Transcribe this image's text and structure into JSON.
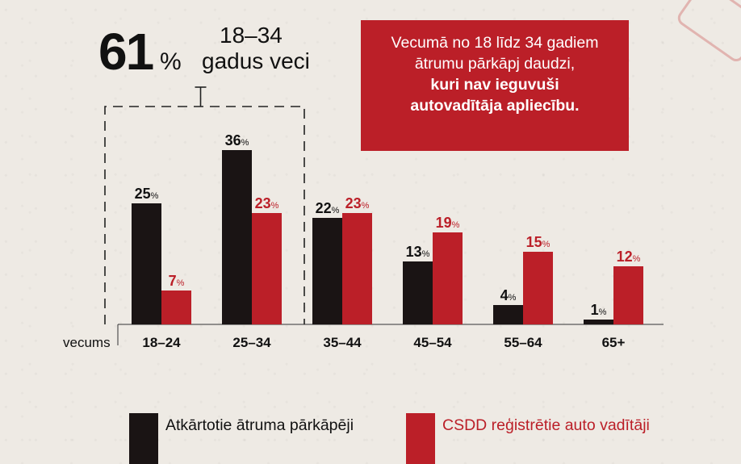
{
  "headline": {
    "percent_value": "61",
    "percent_sign": "%",
    "age_range": "18–34",
    "age_label": "gadus veci"
  },
  "callout": {
    "line1": "Vecumā no 18 līdz 34 gadiem",
    "line2": "ātrumu pārkāpj daudzi,",
    "line3_bold": "kuri nav ieguvuši",
    "line4_bold": "autovadītāja apliecību."
  },
  "colors": {
    "black_series": "#1a1414",
    "red_series": "#bb1f28",
    "red_label": "#bb1f28"
  },
  "chart_data": {
    "type": "bar",
    "xlabel": "vecums",
    "categories": [
      "18–24",
      "25–34",
      "35–44",
      "45–54",
      "55–64",
      "65+"
    ],
    "series": [
      {
        "name": "Atkārtotie ātruma pārkāpēji",
        "values": [
          25,
          36,
          22,
          13,
          4,
          1
        ]
      },
      {
        "name": "CSDD reģistrētie auto vadītāji",
        "values": [
          7,
          23,
          23,
          19,
          15,
          12
        ]
      }
    ],
    "value_suffix": "%",
    "ylim": [
      0,
      40
    ],
    "highlight_range": [
      "18–24",
      "25–34"
    ],
    "grid": false,
    "legend_position": "bottom"
  }
}
